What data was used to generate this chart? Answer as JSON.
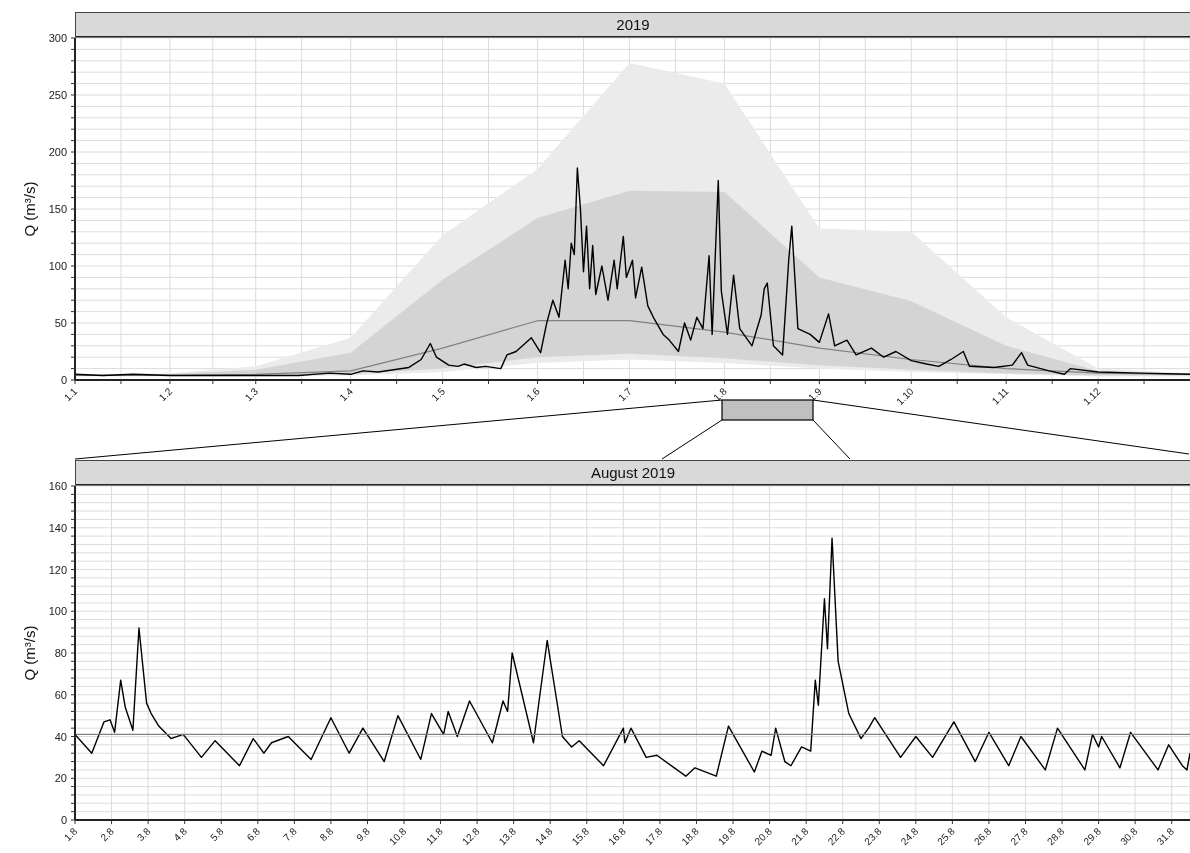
{
  "chart_data": [
    {
      "type": "line",
      "title": "2019",
      "ylabel": "Q (m³/s)",
      "xlim": [
        "2019-01-01",
        "2019-12-31"
      ],
      "ylim": [
        0,
        300
      ],
      "grid": true,
      "xticks": [
        {
          "value": "2019-01-01",
          "label": "1.1"
        },
        {
          "value": "2019-01-16",
          "label": null
        },
        {
          "value": "2019-02-01",
          "label": "1.2"
        },
        {
          "value": "2019-02-15",
          "label": null
        },
        {
          "value": "2019-03-01",
          "label": "1.3"
        },
        {
          "value": "2019-03-16",
          "label": null
        },
        {
          "value": "2019-04-01",
          "label": "1.4"
        },
        {
          "value": "2019-04-16",
          "label": null
        },
        {
          "value": "2019-05-01",
          "label": "1.5"
        },
        {
          "value": "2019-05-16",
          "label": null
        },
        {
          "value": "2019-06-01",
          "label": "1.6"
        },
        {
          "value": "2019-06-16",
          "label": null
        },
        {
          "value": "2019-07-01",
          "label": "1.7"
        },
        {
          "value": "2019-07-16",
          "label": null
        },
        {
          "value": "2019-08-01",
          "label": "1.8"
        },
        {
          "value": "2019-08-16",
          "label": null
        },
        {
          "value": "2019-09-01",
          "label": "1.9"
        },
        {
          "value": "2019-09-16",
          "label": null
        },
        {
          "value": "2019-10-01",
          "label": "1.10"
        },
        {
          "value": "2019-10-16",
          "label": null
        },
        {
          "value": "2019-11-01",
          "label": "1.11"
        },
        {
          "value": "2019-11-16",
          "label": null
        },
        {
          "value": "2019-12-01",
          "label": "1.12"
        },
        {
          "value": "2019-12-16",
          "label": null
        }
      ],
      "yticks": [
        0,
        {
          "value": 10,
          "label": null
        },
        {
          "value": 20,
          "label": null
        },
        {
          "value": 30,
          "label": null
        },
        {
          "value": 40,
          "label": null
        },
        50,
        {
          "value": 60,
          "label": null
        },
        {
          "value": 70,
          "label": null
        },
        {
          "value": 80,
          "label": null
        },
        {
          "value": 90,
          "label": null
        },
        100,
        {
          "value": 110,
          "label": null
        },
        {
          "value": 120,
          "label": null
        },
        {
          "value": 130,
          "label": null
        },
        {
          "value": 140,
          "label": null
        },
        150,
        {
          "value": 160,
          "label": null
        },
        {
          "value": 170,
          "label": null
        },
        {
          "value": 180,
          "label": null
        },
        {
          "value": 190,
          "label": null
        },
        200,
        {
          "value": 210,
          "label": null
        },
        {
          "value": 220,
          "label": null
        },
        {
          "value": 230,
          "label": null
        },
        {
          "value": 240,
          "label": null
        },
        250,
        {
          "value": 260,
          "label": null
        },
        {
          "value": 270,
          "label": null
        },
        {
          "value": 280,
          "label": null
        },
        {
          "value": 290,
          "label": null
        },
        300
      ],
      "series": [
        {
          "type": "line",
          "color": "#ebebeb",
          "x": [
            "2019-01-01",
            "2019-02-01",
            "2019-03-01",
            "2019-04-01",
            "2019-05-01",
            "2019-06-01",
            "2019-07-01",
            "2019-08-01",
            "2019-09-01",
            "2019-10-01",
            "2019-11-01",
            "2019-12-01",
            "2019-12-31"
          ],
          "values": [
            null,
            null,
            null,
            null,
            null,
            null,
            null,
            null,
            null,
            null,
            null,
            null,
            null
          ],
          "lower": [
            3,
            3,
            3,
            4,
            7,
            15,
            18,
            15,
            10,
            7,
            5,
            3,
            3
          ],
          "upper": [
            5,
            6,
            12,
            37,
            127,
            185,
            278,
            260,
            133,
            130,
            55,
            10,
            6
          ]
        },
        {
          "type": "line",
          "color": "#808080",
          "x": [
            "2019-01-01",
            "2019-02-01",
            "2019-03-01",
            "2019-04-01",
            "2019-05-01",
            "2019-06-01",
            "2019-07-01",
            "2019-08-01",
            "2019-09-01",
            "2019-10-01",
            "2019-11-01",
            "2019-12-01",
            "2019-12-31"
          ],
          "values": [
            4,
            4,
            5,
            8,
            28,
            52,
            52,
            42,
            28,
            18,
            10,
            6,
            5
          ],
          "lower": [
            4,
            4,
            4,
            5,
            10,
            20,
            23,
            19,
            13,
            9,
            6,
            4,
            4
          ],
          "upper": [
            4,
            5,
            9,
            24,
            88,
            142,
            166,
            165,
            90,
            69,
            30,
            8,
            5
          ]
        },
        {
          "type": "line",
          "color": "#000000",
          "x": [
            "2019-01-01",
            "2019-01-10",
            "2019-01-20",
            "2019-02-01",
            "2019-02-15",
            "2019-03-01",
            "2019-03-15",
            "2019-03-25",
            "2019-04-01",
            "2019-04-05",
            "2019-04-10",
            "2019-04-15",
            "2019-04-20",
            "2019-04-24",
            "2019-04-27",
            "2019-04-29",
            "2019-05-03",
            "2019-05-06",
            "2019-05-08",
            "2019-05-12",
            "2019-05-15",
            "2019-05-20",
            "2019-05-22",
            "2019-05-25",
            "2019-05-30",
            "2019-06-02",
            "2019-06-04",
            "2019-06-06",
            "2019-06-08",
            "2019-06-10",
            "2019-06-11",
            "2019-06-12",
            "2019-06-13",
            "2019-06-14",
            "2019-06-15",
            "2019-06-16",
            "2019-06-17",
            "2019-06-18",
            "2019-06-19",
            "2019-06-20",
            "2019-06-22",
            "2019-06-24",
            "2019-06-26",
            "2019-06-27",
            "2019-06-29",
            "2019-06-30",
            "2019-07-02",
            "2019-07-03",
            "2019-07-05",
            "2019-07-07",
            "2019-07-09",
            "2019-07-12",
            "2019-07-14",
            "2019-07-17",
            "2019-07-19",
            "2019-07-21",
            "2019-07-23",
            "2019-07-25",
            "2019-07-27",
            "2019-07-28",
            "2019-07-30",
            "2019-07-31",
            "2019-08-02",
            "2019-08-04",
            "2019-08-06",
            "2019-08-10",
            "2019-08-13",
            "2019-08-14",
            "2019-08-15",
            "2019-08-17",
            "2019-08-20",
            "2019-08-22",
            "2019-08-23",
            "2019-08-25",
            "2019-08-29",
            "2019-09-01",
            "2019-09-04",
            "2019-09-06",
            "2019-09-10",
            "2019-09-13",
            "2019-09-18",
            "2019-09-22",
            "2019-09-26",
            "2019-10-01",
            "2019-10-06",
            "2019-10-10",
            "2019-10-14",
            "2019-10-18",
            "2019-10-20",
            "2019-10-28",
            "2019-11-03",
            "2019-11-06",
            "2019-11-08",
            "2019-11-15",
            "2019-11-20",
            "2019-11-22",
            "2019-12-01",
            "2019-12-15",
            "2019-12-31"
          ],
          "values": [
            5,
            4,
            5,
            4,
            4,
            4,
            4,
            6,
            5,
            8,
            7,
            9,
            11,
            18,
            32,
            20,
            13,
            12,
            14,
            11,
            12,
            10,
            22,
            25,
            37,
            24,
            50,
            70,
            55,
            105,
            80,
            120,
            110,
            186,
            150,
            95,
            135,
            80,
            118,
            75,
            100,
            70,
            105,
            80,
            126,
            90,
            105,
            72,
            99,
            65,
            54,
            40,
            35,
            25,
            50,
            35,
            55,
            45,
            109,
            40,
            175,
            78,
            40,
            92,
            45,
            30,
            57,
            80,
            85,
            30,
            22,
            105,
            135,
            45,
            40,
            33,
            58,
            30,
            35,
            22,
            28,
            20,
            25,
            17,
            14,
            12,
            18,
            25,
            12,
            11,
            13,
            24,
            13,
            8,
            5,
            10,
            7,
            6,
            5
          ]
        }
      ]
    },
    {
      "type": "line",
      "title": "August 2019",
      "ylabel": "Q (m³/s)",
      "xlim": [
        "2019-08-01T00:00",
        "2019-08-31T12:00"
      ],
      "ylim": [
        0,
        160
      ],
      "grid": true,
      "xticks": [
        {
          "value": "2019-08-01",
          "label": "1.8"
        },
        {
          "value": "2019-08-02",
          "label": "2.8"
        },
        {
          "value": "2019-08-03",
          "label": "3.8"
        },
        {
          "value": "2019-08-04",
          "label": "4.8"
        },
        {
          "value": "2019-08-05",
          "label": "5.8"
        },
        {
          "value": "2019-08-06",
          "label": "6.8"
        },
        {
          "value": "2019-08-07",
          "label": "7.8"
        },
        {
          "value": "2019-08-08",
          "label": "8.8"
        },
        {
          "value": "2019-08-09",
          "label": "9.8"
        },
        {
          "value": "2019-08-10",
          "label": "10.8"
        },
        {
          "value": "2019-08-11",
          "label": "11.8"
        },
        {
          "value": "2019-08-12",
          "label": "12.8"
        },
        {
          "value": "2019-08-13",
          "label": "13.8"
        },
        {
          "value": "2019-08-14",
          "label": "14.8"
        },
        {
          "value": "2019-08-15",
          "label": "15.8"
        },
        {
          "value": "2019-08-16",
          "label": "16.8"
        },
        {
          "value": "2019-08-17",
          "label": "17.8"
        },
        {
          "value": "2019-08-18",
          "label": "18.8"
        },
        {
          "value": "2019-08-19",
          "label": "19.8"
        },
        {
          "value": "2019-08-20",
          "label": "20.8"
        },
        {
          "value": "2019-08-21",
          "label": "21.8"
        },
        {
          "value": "2019-08-22",
          "label": "22.8"
        },
        {
          "value": "2019-08-23",
          "label": "23.8"
        },
        {
          "value": "2019-08-24",
          "label": "24.8"
        },
        {
          "value": "2019-08-25",
          "label": "25.8"
        },
        {
          "value": "2019-08-26",
          "label": "26.8"
        },
        {
          "value": "2019-08-27",
          "label": "27.8"
        },
        {
          "value": "2019-08-28",
          "label": "28.8"
        },
        {
          "value": "2019-08-29",
          "label": "29.8"
        },
        {
          "value": "2019-08-30",
          "label": "30.8"
        },
        {
          "value": "2019-08-31",
          "label": "31.8"
        }
      ],
      "yticks": [
        0,
        {
          "value": 4,
          "label": null
        },
        {
          "value": 8,
          "label": null
        },
        {
          "value": 12,
          "label": null
        },
        {
          "value": 16,
          "label": null
        },
        20,
        {
          "value": 24,
          "label": null
        },
        {
          "value": 28,
          "label": null
        },
        {
          "value": 32,
          "label": null
        },
        {
          "value": 36,
          "label": null
        },
        40,
        {
          "value": 44,
          "label": null
        },
        {
          "value": 48,
          "label": null
        },
        {
          "value": 52,
          "label": null
        },
        {
          "value": 56,
          "label": null
        },
        60,
        {
          "value": 64,
          "label": null
        },
        {
          "value": 68,
          "label": null
        },
        {
          "value": 72,
          "label": null
        },
        {
          "value": 76,
          "label": null
        },
        80,
        {
          "value": 84,
          "label": null
        },
        {
          "value": 88,
          "label": null
        },
        {
          "value": 92,
          "label": null
        },
        {
          "value": 96,
          "label": null
        },
        100,
        {
          "value": 104,
          "label": null
        },
        {
          "value": 108,
          "label": null
        },
        {
          "value": 112,
          "label": null
        },
        {
          "value": 116,
          "label": null
        },
        120,
        {
          "value": 124,
          "label": null
        },
        {
          "value": 128,
          "label": null
        },
        {
          "value": 132,
          "label": null
        },
        {
          "value": 136,
          "label": null
        },
        140,
        {
          "value": 144,
          "label": null
        },
        {
          "value": 148,
          "label": null
        },
        {
          "value": 152,
          "label": null
        },
        {
          "value": 156,
          "label": null
        },
        160
      ],
      "ref_lines": [
        {
          "axis": "y",
          "value": 41,
          "color": "#808080"
        }
      ],
      "series": [
        {
          "type": "line",
          "color": "#000000",
          "x": [
            "2019-08-01T00:00",
            "2019-08-01T11:00",
            "2019-08-01T19:00",
            "2019-08-01T23:00",
            "2019-08-02T02:00",
            "2019-08-02T06:00",
            "2019-08-02T09:00",
            "2019-08-02T14:00",
            "2019-08-02T18:00",
            "2019-08-02T23:00",
            "2019-08-03T02:00",
            "2019-08-03T07:00",
            "2019-08-03T15:00",
            "2019-08-03T23:00",
            "2019-08-04T11:00",
            "2019-08-04T20:00",
            "2019-08-05T12:00",
            "2019-08-05T21:00",
            "2019-08-06T04:00",
            "2019-08-06T09:00",
            "2019-08-06T20:00",
            "2019-08-07T11:00",
            "2019-08-08T00:00",
            "2019-08-08T12:00",
            "2019-08-08T21:00",
            "2019-08-09T11:00",
            "2019-08-09T20:00",
            "2019-08-10T11:00",
            "2019-08-10T18:00",
            "2019-08-11T02:00",
            "2019-08-11T05:00",
            "2019-08-11T11:00",
            "2019-08-11T19:00",
            "2019-08-12T10:00",
            "2019-08-12T17:00",
            "2019-08-12T20:00",
            "2019-08-12T23:00",
            "2019-08-13T13:00",
            "2019-08-13T22:00",
            "2019-08-14T08:00",
            "2019-08-14T14:00",
            "2019-08-14T19:00",
            "2019-08-15T11:00",
            "2019-08-16T00:00",
            "2019-08-16T01:00",
            "2019-08-16T05:00",
            "2019-08-16T15:00",
            "2019-08-16T22:00",
            "2019-08-17T17:00",
            "2019-08-17T23:00",
            "2019-08-18T13:00",
            "2019-08-18T21:00",
            "2019-08-19T14:00",
            "2019-08-19T19:00",
            "2019-08-20T01:00",
            "2019-08-20T04:00",
            "2019-08-20T10:00",
            "2019-08-20T14:00",
            "2019-08-20T21:00",
            "2019-08-21T03:00",
            "2019-08-21T06:00",
            "2019-08-21T08:00",
            "2019-08-21T12:00",
            "2019-08-21T14:00",
            "2019-08-21T17:00",
            "2019-08-21T21:00",
            "2019-08-22T04:00",
            "2019-08-22T12:00",
            "2019-08-22T17:00",
            "2019-08-22T21:00",
            "2019-08-23T14:00",
            "2019-08-24T00:00",
            "2019-08-24T11:00",
            "2019-08-25T01:00",
            "2019-08-25T15:00",
            "2019-08-26T00:00",
            "2019-08-26T13:00",
            "2019-08-26T21:00",
            "2019-08-27T13:00",
            "2019-08-27T21:00",
            "2019-08-28T15:00",
            "2019-08-28T20:00",
            "2019-08-29T00:00",
            "2019-08-29T02:00",
            "2019-08-29T14:00",
            "2019-08-29T21:00",
            "2019-08-30T15:00",
            "2019-08-30T22:00",
            "2019-08-31T07:00",
            "2019-08-31T10:00",
            "2019-08-31T12:00"
          ],
          "values": [
            41,
            32,
            47,
            48,
            42,
            67,
            54,
            43,
            92,
            56,
            51,
            45,
            39,
            41,
            30,
            38,
            26,
            39,
            32,
            37,
            40,
            29,
            49,
            32,
            44,
            28,
            50,
            29,
            51,
            41,
            52,
            40,
            57,
            37,
            57,
            52,
            80,
            37,
            86,
            40,
            35,
            38,
            26,
            44,
            37,
            44,
            30,
            31,
            21,
            25,
            21,
            45,
            23,
            33,
            31,
            44,
            28,
            26,
            35,
            33,
            67,
            55,
            106,
            82,
            135,
            76,
            51,
            39,
            44,
            49,
            30,
            40,
            30,
            47,
            28,
            42,
            26,
            40,
            24,
            44,
            24,
            41,
            35,
            40,
            25,
            42,
            24,
            36,
            26,
            24,
            32
          ]
        }
      ]
    }
  ]
}
